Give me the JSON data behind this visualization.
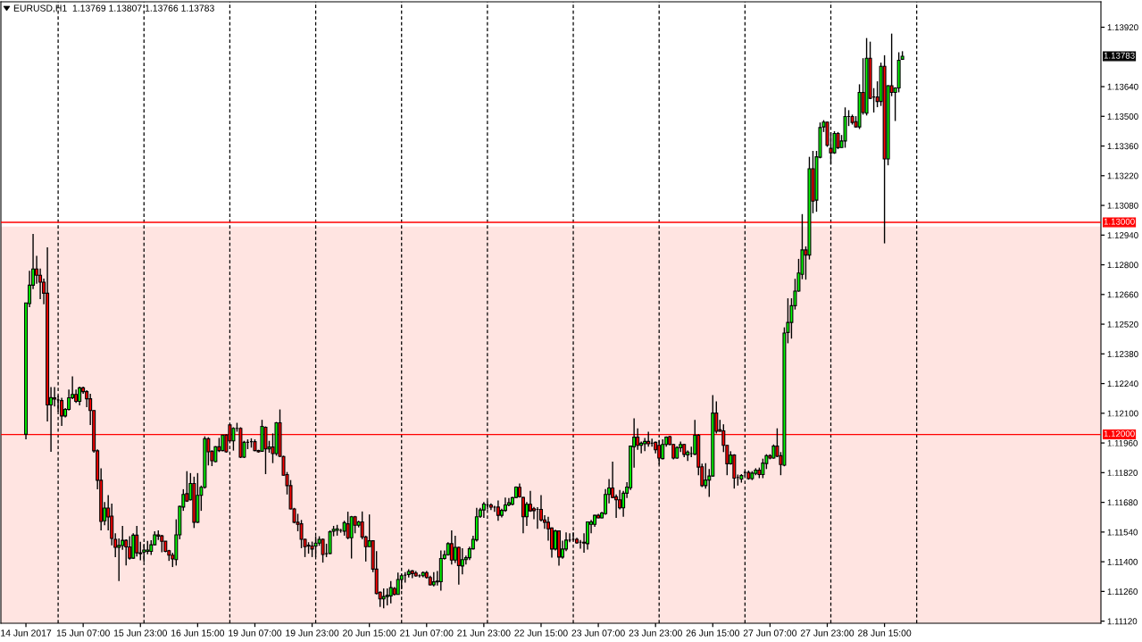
{
  "chart_data": {
    "type": "candlestick",
    "title": "EURUSD,H1  1.13769 1.13807 1.13766 1.13783",
    "categories": [
      "14 Jun 2017",
      null,
      null,
      null,
      null,
      null,
      null,
      null,
      null,
      null,
      null,
      null,
      null,
      null,
      null,
      null,
      "15 Jun 07:00",
      null,
      null,
      null,
      null,
      null,
      null,
      null,
      null,
      null,
      null,
      null,
      null,
      null,
      null,
      null,
      "15 Jun 23:00",
      null,
      null,
      null,
      null,
      null,
      null,
      null,
      null,
      null,
      null,
      null,
      null,
      null,
      null,
      null,
      "16 Jun 15:00",
      null,
      null,
      null,
      null,
      null,
      null,
      null,
      null,
      null,
      null,
      null,
      null,
      null,
      null,
      null,
      "19 Jun 07:00",
      null,
      null,
      null,
      null,
      null,
      null,
      null,
      null,
      null,
      null,
      null,
      null,
      null,
      null,
      null,
      "19 Jun 23:00",
      null,
      null,
      null,
      null,
      null,
      null,
      null,
      null,
      null,
      null,
      null,
      null,
      null,
      null,
      null,
      "20 Jun 15:00",
      null,
      null,
      null,
      null,
      null,
      null,
      null,
      null,
      null,
      null,
      null,
      null,
      null,
      null,
      null,
      "21 Jun 07:00",
      null,
      null,
      null,
      null,
      null,
      null,
      null,
      null,
      null,
      null,
      null,
      null,
      null,
      null,
      null,
      "21 Jun 23:00",
      null,
      null,
      null,
      null,
      null,
      null,
      null,
      null,
      null,
      null,
      null,
      null,
      null,
      null,
      null,
      "22 Jun 15:00",
      null,
      null,
      null,
      null,
      null,
      null,
      null,
      null,
      null,
      null,
      null,
      null,
      null,
      null,
      null,
      "23 Jun 07:00",
      null,
      null,
      null,
      null,
      null,
      null,
      null,
      null,
      null,
      null,
      null,
      null,
      null,
      null,
      null,
      "23 Jun 23:00",
      null,
      null,
      null,
      null,
      null,
      null,
      null,
      null,
      null,
      null,
      null,
      null,
      null,
      null,
      null,
      "26 Jun 15:00",
      null,
      null,
      null,
      null,
      null,
      null,
      null,
      null,
      null,
      null,
      null,
      null,
      null,
      null,
      null,
      "27 Jun 07:00",
      null,
      null,
      null,
      null,
      null,
      null,
      null,
      null,
      null,
      null,
      null,
      null,
      null,
      null,
      null,
      "27 Jun 23:00",
      null,
      null,
      null,
      null,
      null,
      null,
      null,
      null,
      null,
      null,
      null,
      null,
      null,
      null,
      null,
      "28 Jun 15:00",
      null,
      null,
      null,
      null,
      null,
      null,
      null,
      null,
      null,
      null,
      null,
      null,
      null,
      null,
      null,
      null,
      null,
      null,
      null,
      null,
      null,
      null,
      null,
      null,
      null,
      null,
      null,
      null,
      null,
      null,
      null,
      null,
      null,
      null,
      null,
      null,
      null,
      null,
      null,
      null,
      null,
      null,
      null,
      null,
      null,
      null,
      null,
      null,
      null,
      null,
      null,
      null,
      null,
      null,
      null,
      null,
      null,
      null,
      null,
      null
    ],
    "ohlc": [
      [
        1.12001,
        1.1262,
        1.11977,
        1.1262
      ],
      [
        1.12617,
        1.12772,
        1.126,
        1.12704
      ],
      [
        1.12704,
        1.12945,
        1.12685,
        1.1278
      ],
      [
        1.1278,
        1.12842,
        1.12711,
        1.12751
      ],
      [
        1.12751,
        1.12782,
        1.12638,
        1.12718
      ],
      [
        1.12718,
        1.12735,
        1.12614,
        1.12666
      ],
      [
        1.12666,
        1.12882,
        1.12061,
        1.12139
      ],
      [
        1.12139,
        1.12223,
        1.11918,
        1.12174
      ],
      [
        1.12173,
        1.12223,
        1.12132,
        1.12167
      ],
      [
        1.12163,
        1.12184,
        1.12108,
        1.12163
      ],
      [
        1.1216,
        1.12173,
        1.1204,
        1.12087
      ],
      [
        1.12087,
        1.12125,
        1.1208,
        1.12118
      ],
      [
        1.12118,
        1.12212,
        1.12113,
        1.12173
      ],
      [
        1.12173,
        1.12274,
        1.12167,
        1.12189
      ],
      [
        1.12189,
        1.12212,
        1.12149,
        1.12156
      ],
      [
        1.12156,
        1.12226,
        1.12137,
        1.1222
      ],
      [
        1.1222,
        1.12226,
        1.12192,
        1.12202
      ],
      [
        1.12202,
        1.12209,
        1.12129,
        1.12168
      ],
      [
        1.12168,
        1.12192,
        1.12045,
        1.12113
      ],
      [
        1.12113,
        1.12113,
        1.11914,
        1.11923
      ],
      [
        1.11923,
        1.1193,
        1.11741,
        1.11784
      ],
      [
        1.11784,
        1.1184,
        1.11548,
        1.1159
      ],
      [
        1.11593,
        1.11681,
        1.11572,
        1.11653
      ],
      [
        1.11653,
        1.11714,
        1.11548,
        1.11611
      ],
      [
        1.11615,
        1.11674,
        1.11477,
        1.1151
      ],
      [
        1.11506,
        1.11534,
        1.11421,
        1.11468
      ],
      [
        1.11468,
        1.1151,
        1.11309,
        1.11477
      ],
      [
        1.11476,
        1.11569,
        1.11456,
        1.11501
      ],
      [
        1.11501,
        1.11506,
        1.11383,
        1.1147
      ],
      [
        1.1147,
        1.1152,
        1.1141,
        1.11417
      ],
      [
        1.11417,
        1.11534,
        1.11414,
        1.11525
      ],
      [
        1.11525,
        1.11569,
        1.11425,
        1.11442
      ],
      [
        1.11442,
        1.11494,
        1.11407,
        1.11438
      ],
      [
        1.11446,
        1.11484,
        1.114,
        1.11455
      ],
      [
        1.11449,
        1.11498,
        1.11435,
        1.11455
      ],
      [
        1.11449,
        1.11501,
        1.11432,
        1.1148
      ],
      [
        1.1148,
        1.11544,
        1.11477,
        1.11527
      ],
      [
        1.11527,
        1.11548,
        1.11503,
        1.11521
      ],
      [
        1.11522,
        1.11527,
        1.11445,
        1.11496
      ],
      [
        1.11497,
        1.11497,
        1.11445,
        1.11449
      ],
      [
        1.11452,
        1.11456,
        1.11404,
        1.11431
      ],
      [
        1.11431,
        1.11442,
        1.11375,
        1.11413
      ],
      [
        1.1141,
        1.116,
        1.11382,
        1.11527
      ],
      [
        1.11527,
        1.11664,
        1.11506,
        1.11661
      ],
      [
        1.11658,
        1.11742,
        1.1164,
        1.11717
      ],
      [
        1.11721,
        1.11827,
        1.11682,
        1.11686
      ],
      [
        1.11692,
        1.11818,
        1.11689,
        1.11769
      ],
      [
        1.11769,
        1.11801,
        1.11559,
        1.11586
      ],
      [
        1.11586,
        1.11818,
        1.11583,
        1.11713
      ],
      [
        1.11713,
        1.11759,
        1.1164,
        1.11751
      ],
      [
        1.11751,
        1.11991,
        1.11745,
        1.1198
      ],
      [
        1.1198,
        1.11987,
        1.11854,
        1.11918
      ],
      [
        1.11921,
        1.11925,
        1.11851,
        1.11876
      ],
      [
        1.11872,
        1.11945,
        1.11869,
        1.11942
      ],
      [
        1.11942,
        1.11984,
        1.11917,
        1.11924
      ],
      [
        1.11924,
        1.11998,
        1.11921,
        1.11997
      ],
      [
        1.11997,
        1.12001,
        1.11914,
        1.11918
      ],
      [
        1.12045,
        1.12048,
        1.11967,
        1.1197
      ],
      [
        1.1197,
        1.12034,
        1.11924,
        1.12029
      ],
      [
        1.12029,
        1.12055,
        1.12013,
        1.12029
      ],
      [
        1.12029,
        1.12034,
        1.11889,
        1.11893
      ],
      [
        1.11893,
        1.1197,
        1.11889,
        1.11963
      ],
      [
        1.11963,
        1.11977,
        1.11931,
        1.11963
      ],
      [
        1.11966,
        1.11982,
        1.11938,
        1.11966
      ],
      [
        1.11966,
        1.11977,
        1.11921,
        1.11924
      ],
      [
        1.11924,
        1.11928,
        1.11914,
        1.11918
      ],
      [
        1.11921,
        1.12069,
        1.11918,
        1.12038
      ],
      [
        1.12034,
        1.12038,
        1.11813,
        1.11932
      ],
      [
        1.11932,
        1.1197,
        1.11914,
        1.11941
      ],
      [
        1.11941,
        1.12005,
        1.11865,
        1.1191
      ],
      [
        1.1191,
        1.12059,
        1.119,
        1.12055
      ],
      [
        1.12055,
        1.12118,
        1.11893,
        1.11897
      ],
      [
        1.11896,
        1.119,
        1.11806,
        1.11808
      ],
      [
        1.11811,
        1.11823,
        1.11717,
        1.11759
      ],
      [
        1.11759,
        1.11785,
        1.11647,
        1.11649
      ],
      [
        1.11649,
        1.11654,
        1.11581,
        1.11586
      ],
      [
        1.11586,
        1.11626,
        1.11544,
        1.11576
      ],
      [
        1.11579,
        1.11597,
        1.11464,
        1.11506
      ],
      [
        1.11506,
        1.11509,
        1.11422,
        1.11471
      ],
      [
        1.11478,
        1.11492,
        1.11438,
        1.11474
      ],
      [
        1.11474,
        1.11495,
        1.11422,
        1.1146
      ],
      [
        1.11474,
        1.1152,
        1.11422,
        1.11488
      ],
      [
        1.11488,
        1.1152,
        1.11475,
        1.11506
      ],
      [
        1.11506,
        1.1151,
        1.11396,
        1.11434
      ],
      [
        1.11438,
        1.11485,
        1.11422,
        1.11438
      ],
      [
        1.11439,
        1.11548,
        1.11436,
        1.11541
      ],
      [
        1.11544,
        1.11569,
        1.1152,
        1.11553
      ],
      [
        1.11548,
        1.11574,
        1.11523,
        1.11555
      ],
      [
        1.11548,
        1.11555,
        1.11537,
        1.11548
      ],
      [
        1.11544,
        1.11593,
        1.11523,
        1.11584
      ],
      [
        1.11579,
        1.11636,
        1.11506,
        1.11513
      ],
      [
        1.11513,
        1.11616,
        1.11415,
        1.11612
      ],
      [
        1.11612,
        1.11616,
        1.11534,
        1.11572
      ],
      [
        1.11572,
        1.11593,
        1.11562,
        1.11588
      ],
      [
        1.11588,
        1.11637,
        1.11506,
        1.11517
      ],
      [
        1.11517,
        1.11523,
        1.11401,
        1.11471
      ],
      [
        1.11471,
        1.11623,
        1.11471,
        1.11499
      ],
      [
        1.11499,
        1.11499,
        1.11351,
        1.11365
      ],
      [
        1.11365,
        1.1145,
        1.11246,
        1.1125
      ],
      [
        1.11256,
        1.1126,
        1.11187,
        1.11225
      ],
      [
        1.11225,
        1.11274,
        1.1118,
        1.11236
      ],
      [
        1.11236,
        1.11274,
        1.11194,
        1.11242
      ],
      [
        1.11239,
        1.11309,
        1.11204,
        1.11278
      ],
      [
        1.11274,
        1.11281,
        1.11242,
        1.11246
      ],
      [
        1.11246,
        1.11349,
        1.11246,
        1.11316
      ],
      [
        1.11316,
        1.11344,
        1.1127,
        1.11334
      ],
      [
        1.11337,
        1.11351,
        1.11302,
        1.11337
      ],
      [
        1.1134,
        1.11365,
        1.11326,
        1.11354
      ],
      [
        1.11357,
        1.11361,
        1.11323,
        1.11344
      ],
      [
        1.11347,
        1.11356,
        1.1133,
        1.11333
      ],
      [
        1.11334,
        1.1134,
        1.11326,
        1.11334
      ],
      [
        1.11334,
        1.11354,
        1.11327,
        1.11349
      ],
      [
        1.11349,
        1.11356,
        1.1132,
        1.11326
      ],
      [
        1.11326,
        1.11334,
        1.11288,
        1.11291
      ],
      [
        1.11291,
        1.11351,
        1.11284,
        1.11305
      ],
      [
        1.11305,
        1.11356,
        1.11288,
        1.11309
      ],
      [
        1.11306,
        1.11453,
        1.11264,
        1.11415
      ],
      [
        1.11415,
        1.11453,
        1.1141,
        1.11433
      ],
      [
        1.11433,
        1.11492,
        1.11429,
        1.11485
      ],
      [
        1.11485,
        1.11548,
        1.11387,
        1.11408
      ],
      [
        1.11408,
        1.11523,
        1.11394,
        1.11468
      ],
      [
        1.11468,
        1.11471,
        1.11292,
        1.11382
      ],
      [
        1.1138,
        1.11464,
        1.1134,
        1.1141
      ],
      [
        1.1141,
        1.11429,
        1.11387,
        1.11419
      ],
      [
        1.11419,
        1.11471,
        1.11408,
        1.11461
      ],
      [
        1.11461,
        1.11523,
        1.11457,
        1.11506
      ],
      [
        1.11503,
        1.11654,
        1.11495,
        1.11612
      ],
      [
        1.11614,
        1.11654,
        1.11607,
        1.11644
      ],
      [
        1.11644,
        1.11682,
        1.11607,
        1.11672
      ],
      [
        1.11668,
        1.11686,
        1.11647,
        1.11668
      ],
      [
        1.11668,
        1.11675,
        1.11644,
        1.11657
      ],
      [
        1.11657,
        1.11664,
        1.11635,
        1.11657
      ],
      [
        1.11658,
        1.11689,
        1.11593,
        1.11619
      ],
      [
        1.11619,
        1.1165,
        1.11609,
        1.11642
      ],
      [
        1.11642,
        1.11703,
        1.11635,
        1.11668
      ],
      [
        1.11668,
        1.117,
        1.11661,
        1.11678
      ],
      [
        1.11671,
        1.11706,
        1.11666,
        1.11702
      ],
      [
        1.11703,
        1.11755,
        1.117,
        1.11752
      ],
      [
        1.11751,
        1.11769,
        1.11703,
        1.11707
      ],
      [
        1.11703,
        1.11706,
        1.11534,
        1.11612
      ],
      [
        1.11612,
        1.11682,
        1.11569,
        1.11671
      ],
      [
        1.11671,
        1.11734,
        1.11635,
        1.1164
      ],
      [
        1.1165,
        1.11658,
        1.116,
        1.11641
      ],
      [
        1.11647,
        1.11657,
        1.11555,
        1.11647
      ],
      [
        1.11647,
        1.11714,
        1.1159,
        1.11597
      ],
      [
        1.11597,
        1.11619,
        1.11555,
        1.11586
      ],
      [
        1.11586,
        1.11612,
        1.11499,
        1.11555
      ],
      [
        1.11559,
        1.11562,
        1.11419,
        1.1146
      ],
      [
        1.1146,
        1.11551,
        1.11453,
        1.11545
      ],
      [
        1.11545,
        1.11548,
        1.11382,
        1.11422
      ],
      [
        1.11422,
        1.11499,
        1.11414,
        1.1146
      ],
      [
        1.1146,
        1.11538,
        1.1145,
        1.11502
      ],
      [
        1.11502,
        1.11534,
        1.11492,
        1.11502
      ],
      [
        1.11506,
        1.11538,
        1.11499,
        1.11506
      ],
      [
        1.11506,
        1.11513,
        1.11485,
        1.11489
      ],
      [
        1.11492,
        1.11503,
        1.11461,
        1.11492
      ],
      [
        1.11492,
        1.11534,
        1.11443,
        1.11488
      ],
      [
        1.11485,
        1.1159,
        1.11457,
        1.11588
      ],
      [
        1.11576,
        1.11597,
        1.11534,
        1.11588
      ],
      [
        1.11576,
        1.11621,
        1.11565,
        1.11619
      ],
      [
        1.11619,
        1.11626,
        1.11605,
        1.11607
      ],
      [
        1.11607,
        1.11635,
        1.11605,
        1.1163
      ],
      [
        1.11627,
        1.11742,
        1.11621,
        1.11717
      ],
      [
        1.11717,
        1.1179,
        1.11675,
        1.11748
      ],
      [
        1.11748,
        1.11872,
        1.117,
        1.11703
      ],
      [
        1.11706,
        1.11717,
        1.11607,
        1.11692
      ],
      [
        1.11692,
        1.11738,
        1.11647,
        1.11654
      ],
      [
        1.11654,
        1.11734,
        1.11612,
        1.11723
      ],
      [
        1.11723,
        1.11775,
        1.117,
        1.11752
      ],
      [
        1.11749,
        1.11948,
        1.11738,
        1.11945
      ],
      [
        1.11942,
        1.12076,
        1.11844,
        1.11987
      ],
      [
        1.11987,
        1.12029,
        1.11928,
        1.11949
      ],
      [
        1.11949,
        1.11967,
        1.11911,
        1.11959
      ],
      [
        1.11956,
        1.11984,
        1.11921,
        1.11967
      ],
      [
        1.11967,
        1.12013,
        1.11942,
        1.11956
      ],
      [
        1.11959,
        1.1198,
        1.11942,
        1.11959
      ],
      [
        1.11963,
        1.11967,
        1.11911,
        1.11928
      ],
      [
        1.11949,
        1.11973,
        1.11858,
        1.11889
      ],
      [
        1.11886,
        1.11977,
        1.11883,
        1.11953
      ],
      [
        1.11953,
        1.11991,
        1.11942,
        1.11987
      ],
      [
        1.1199,
        1.11994,
        1.11949,
        1.11953
      ],
      [
        1.11953,
        1.11956,
        1.11883,
        1.11889
      ],
      [
        1.11889,
        1.11945,
        1.11886,
        1.11938
      ],
      [
        1.11937,
        1.11967,
        1.11917,
        1.11953
      ],
      [
        1.11953,
        1.11956,
        1.11893,
        1.11906
      ],
      [
        1.11904,
        1.11925,
        1.11875,
        1.11917
      ],
      [
        1.1191,
        1.11942,
        1.11893,
        1.1191
      ],
      [
        1.11907,
        1.12069,
        1.11903,
        1.11996
      ],
      [
        1.11996,
        1.12001,
        1.11808,
        1.11846
      ],
      [
        1.11848,
        1.11862,
        1.11752,
        1.11759
      ],
      [
        1.11759,
        1.11865,
        1.11745,
        1.11785
      ],
      [
        1.11785,
        1.11837,
        1.11706,
        1.11804
      ],
      [
        1.11804,
        1.12186,
        1.11801,
        1.12101
      ],
      [
        1.12101,
        1.12156,
        1.12005,
        1.12015
      ],
      [
        1.12022,
        1.12069,
        1.12013,
        1.12015
      ],
      [
        1.12017,
        1.12048,
        1.11917,
        1.11949
      ],
      [
        1.11949,
        1.11949,
        1.11808,
        1.11862
      ],
      [
        1.11862,
        1.11921,
        1.11858,
        1.11903
      ],
      [
        1.11903,
        1.11907,
        1.11745,
        1.11794
      ],
      [
        1.11797,
        1.11811,
        1.11759,
        1.11797
      ],
      [
        1.1179,
        1.11813,
        1.11773,
        1.11806
      ],
      [
        1.11821,
        1.11827,
        1.11801,
        1.11821
      ],
      [
        1.11821,
        1.1183,
        1.11787,
        1.11792
      ],
      [
        1.11792,
        1.11827,
        1.11785,
        1.11818
      ],
      [
        1.11816,
        1.11841,
        1.11808,
        1.11832
      ],
      [
        1.11832,
        1.11844,
        1.11794,
        1.11811
      ],
      [
        1.11811,
        1.11886,
        1.11794,
        1.11865
      ],
      [
        1.11863,
        1.11907,
        1.11837,
        1.119
      ],
      [
        1.119,
        1.11907,
        1.11883,
        1.11889
      ],
      [
        1.11889,
        1.11953,
        1.11886,
        1.11945
      ],
      [
        1.11945,
        1.12029,
        1.11893,
        1.11897
      ],
      [
        1.119,
        1.11917,
        1.11808,
        1.11858
      ],
      [
        1.11855,
        1.12505,
        1.1185,
        1.12478
      ],
      [
        1.12481,
        1.12642,
        1.1243,
        1.12528
      ],
      [
        1.12528,
        1.12642,
        1.12452,
        1.12607
      ],
      [
        1.12607,
        1.12734,
        1.12589,
        1.12676
      ],
      [
        1.12676,
        1.12828,
        1.12673,
        1.12761
      ],
      [
        1.12755,
        1.13039,
        1.12732,
        1.1287
      ],
      [
        1.1287,
        1.12887,
        1.1273,
        1.12846
      ],
      [
        1.12846,
        1.13309,
        1.12825,
        1.13253
      ],
      [
        1.13253,
        1.13337,
        1.13043,
        1.131
      ],
      [
        1.13105,
        1.13337,
        1.1305,
        1.13309
      ],
      [
        1.13307,
        1.13471,
        1.13302,
        1.13447
      ],
      [
        1.1345,
        1.13482,
        1.13426,
        1.13473
      ],
      [
        1.13473,
        1.13475,
        1.13356,
        1.13363
      ],
      [
        1.13349,
        1.13426,
        1.13274,
        1.13328
      ],
      [
        1.13328,
        1.1343,
        1.13323,
        1.13419
      ],
      [
        1.13419,
        1.13426,
        1.13345,
        1.13352
      ],
      [
        1.13353,
        1.13412,
        1.13352,
        1.13384
      ],
      [
        1.13384,
        1.13542,
        1.13352,
        1.13499
      ],
      [
        1.13499,
        1.13529,
        1.13454,
        1.13499
      ],
      [
        1.13499,
        1.13508,
        1.13461,
        1.13471
      ],
      [
        1.13475,
        1.13501,
        1.13447,
        1.1345
      ],
      [
        1.1345,
        1.13651,
        1.1344,
        1.13613
      ],
      [
        1.13613,
        1.13774,
        1.13508,
        1.13518
      ],
      [
        1.13515,
        1.13869,
        1.13504,
        1.13774
      ],
      [
        1.13774,
        1.13852,
        1.13581,
        1.13585
      ],
      [
        1.13591,
        1.13633,
        1.13518,
        1.13591
      ],
      [
        1.13591,
        1.13665,
        1.13543,
        1.1357
      ],
      [
        1.1357,
        1.13753,
        1.13549,
        1.13736
      ],
      [
        1.13736,
        1.13788,
        1.12901,
        1.13299
      ],
      [
        1.13299,
        1.13647,
        1.13269,
        1.13644
      ],
      [
        1.13644,
        1.1389,
        1.13595,
        1.13613
      ],
      [
        1.13613,
        1.13637,
        1.13478,
        1.13634
      ],
      [
        1.13634,
        1.13802,
        1.13613,
        1.13764
      ],
      [
        1.13769,
        1.13807,
        1.13766,
        1.13783
      ],
      null,
      null,
      null,
      null,
      null,
      null,
      null,
      null,
      null,
      null,
      null,
      null,
      null,
      null,
      null,
      null,
      null,
      null,
      null,
      null,
      null,
      null,
      null,
      null,
      null,
      null,
      null,
      null,
      null,
      null,
      null,
      null,
      null,
      null,
      null,
      null,
      null,
      null,
      null,
      null,
      null,
      null,
      null,
      null,
      null,
      null,
      null,
      null,
      null,
      null,
      null,
      null,
      null,
      null,
      null
    ],
    "colors": [
      "#00ff00",
      "#00ff00",
      "#00ff00",
      "#ff0000",
      "#ff0000",
      "#ff0000",
      "#ff0000",
      "#00ff00",
      "#ff0000",
      "#000000",
      "#ff0000",
      "#00ff00",
      "#00ff00",
      "#00ff00",
      "#ff0000",
      "#00ff00",
      "#ff0000",
      "#ff0000",
      "#ff0000",
      "#ff0000",
      "#ff0000",
      "#ff0000",
      "#00ff00",
      "#ff0000",
      "#ff0000",
      "#ff0000",
      "#00ff00",
      "#00ff00",
      "#ff0000",
      "#ff0000",
      "#00ff00",
      "#ff0000",
      "#ff0000",
      "#00ff00",
      "#00ff00",
      "#00ff00",
      "#00ff00",
      "#ff0000",
      "#ff0000",
      "#ff0000",
      "#ff0000",
      "#ff0000",
      "#00ff00",
      "#00ff00",
      "#00ff00",
      "#ff0000",
      "#00ff00",
      "#ff0000",
      "#00ff00",
      "#00ff00",
      "#00ff00",
      "#ff0000",
      "#ff0000",
      "#00ff00",
      "#ff0000",
      "#00ff00",
      "#ff0000",
      "#ff0000",
      "#00ff00",
      "#000000",
      "#ff0000",
      "#00ff00",
      "#000000",
      "#000000",
      "#ff0000",
      "#ff0000",
      "#00ff00",
      "#ff0000",
      "#00ff00",
      "#ff0000",
      "#00ff00",
      "#ff0000",
      "#ff0000",
      "#ff0000",
      "#ff0000",
      "#ff0000",
      "#ff0000",
      "#ff0000",
      "#ff0000",
      "#ff0000",
      "#ff0000",
      "#00ff00",
      "#00ff00",
      "#ff0000",
      "#000000",
      "#00ff00",
      "#00ff00",
      "#00ff00",
      "#000000",
      "#00ff00",
      "#ff0000",
      "#00ff00",
      "#ff0000",
      "#00ff00",
      "#ff0000",
      "#ff0000",
      "#00ff00",
      "#ff0000",
      "#ff0000",
      "#ff0000",
      "#00ff00",
      "#00ff00",
      "#00ff00",
      "#ff0000",
      "#00ff00",
      "#00ff00",
      "#000000",
      "#00ff00",
      "#ff0000",
      "#ff0000",
      "#000000",
      "#00ff00",
      "#ff0000",
      "#ff0000",
      "#00ff00",
      "#00ff00",
      "#00ff00",
      "#00ff00",
      "#00ff00",
      "#ff0000",
      "#00ff00",
      "#ff0000",
      "#00ff00",
      "#00ff00",
      "#00ff00",
      "#00ff00",
      "#00ff00",
      "#00ff00",
      "#00ff00",
      "#000000",
      "#ff0000",
      "#000000",
      "#ff0000",
      "#00ff00",
      "#00ff00",
      "#00ff00",
      "#00ff00",
      "#00ff00",
      "#ff0000",
      "#ff0000",
      "#00ff00",
      "#ff0000",
      "#ff0000",
      "#000000",
      "#ff0000",
      "#ff0000",
      "#ff0000",
      "#ff0000",
      "#00ff00",
      "#ff0000",
      "#00ff00",
      "#00ff00",
      "#000000",
      "#000000",
      "#ff0000",
      "#000000",
      "#ff0000",
      "#00ff00",
      "#00ff00",
      "#00ff00",
      "#ff0000",
      "#00ff00",
      "#00ff00",
      "#00ff00",
      "#ff0000",
      "#ff0000",
      "#ff0000",
      "#00ff00",
      "#00ff00",
      "#00ff00",
      "#00ff00",
      "#ff0000",
      "#00ff00",
      "#00ff00",
      "#ff0000",
      "#000000",
      "#ff0000",
      "#ff0000",
      "#00ff00",
      "#00ff00",
      "#ff0000",
      "#ff0000",
      "#00ff00",
      "#00ff00",
      "#ff0000",
      "#00ff00",
      "#000000",
      "#00ff00",
      "#ff0000",
      "#ff0000",
      "#00ff00",
      "#00ff00",
      "#00ff00",
      "#ff0000",
      "#ff0000",
      "#ff0000",
      "#ff0000",
      "#00ff00",
      "#ff0000",
      "#000000",
      "#00ff00",
      "#000000",
      "#ff0000",
      "#00ff00",
      "#00ff00",
      "#ff0000",
      "#00ff00",
      "#00ff00",
      "#ff0000",
      "#00ff00",
      "#ff0000",
      "#ff0000",
      "#00ff00",
      "#00ff00",
      "#00ff00",
      "#00ff00",
      "#00ff00",
      "#00ff00",
      "#ff0000",
      "#00ff00",
      "#ff0000",
      "#00ff00",
      "#00ff00",
      "#00ff00",
      "#ff0000",
      "#ff0000",
      "#00ff00",
      "#ff0000",
      "#00ff00",
      "#00ff00",
      "#000000",
      "#ff0000",
      "#ff0000",
      "#00ff00",
      "#ff0000",
      "#00ff00",
      "#ff0000",
      "#000000",
      "#ff0000",
      "#00ff00",
      "#ff0000",
      "#00ff00",
      "#ff0000",
      "#00ff00",
      "#00ff00",
      "#00ff00",
      null,
      null,
      null,
      null,
      null,
      null,
      null,
      null,
      null,
      null,
      null,
      null,
      null,
      null,
      null,
      null,
      null,
      null,
      null,
      null,
      null,
      null,
      null,
      null,
      null,
      null,
      null,
      null,
      null,
      null,
      null,
      null,
      null,
      null,
      null,
      null,
      null,
      null,
      null,
      null,
      null,
      null,
      null,
      null,
      null,
      null,
      null,
      null,
      null,
      null,
      null,
      null,
      null,
      null,
      null
    ],
    "ylim": [
      1.1111,
      1.1404
    ],
    "yticks": [
      {
        "value": 1.1392,
        "label": "1.13920"
      },
      {
        "value": 1.1364,
        "label": "1.13640"
      },
      {
        "value": 1.135,
        "label": "1.13500"
      },
      {
        "value": 1.1336,
        "label": "1.13360"
      },
      {
        "value": 1.1322,
        "label": "1.13220"
      },
      {
        "value": 1.1308,
        "label": "1.13080"
      },
      {
        "value": 1.1294,
        "label": "1.12940"
      },
      {
        "value": 1.128,
        "label": "1.12800"
      },
      {
        "value": 1.1266,
        "label": "1.12660"
      },
      {
        "value": 1.1252,
        "label": "1.12520"
      },
      {
        "value": 1.1238,
        "label": "1.12380"
      },
      {
        "value": 1.1224,
        "label": "1.12240"
      },
      {
        "value": 1.121,
        "label": "1.12100"
      },
      {
        "value": 1.1196,
        "label": "1.11960"
      },
      {
        "value": 1.1182,
        "label": "1.11820"
      },
      {
        "value": 1.1168,
        "label": "1.11680"
      },
      {
        "value": 1.1154,
        "label": "1.11540"
      },
      {
        "value": 1.114,
        "label": "1.11400"
      },
      {
        "value": 1.1126,
        "label": "1.11260"
      },
      {
        "value": 1.1112,
        "label": "1.11120"
      }
    ],
    "ref_lines": [
      {
        "axis": "y",
        "value": 1.13,
        "label": "1.13000",
        "color": "#ff0000"
      },
      {
        "axis": "y",
        "value": 1.12,
        "label": "1.12000",
        "color": "#ff0000"
      }
    ],
    "bands": [
      {
        "axis": "y",
        "from": 1.1111,
        "to": 1.1298,
        "color": "#ffe4e1"
      }
    ],
    "annotations": [
      "1.13783"
    ],
    "grid": false
  }
}
